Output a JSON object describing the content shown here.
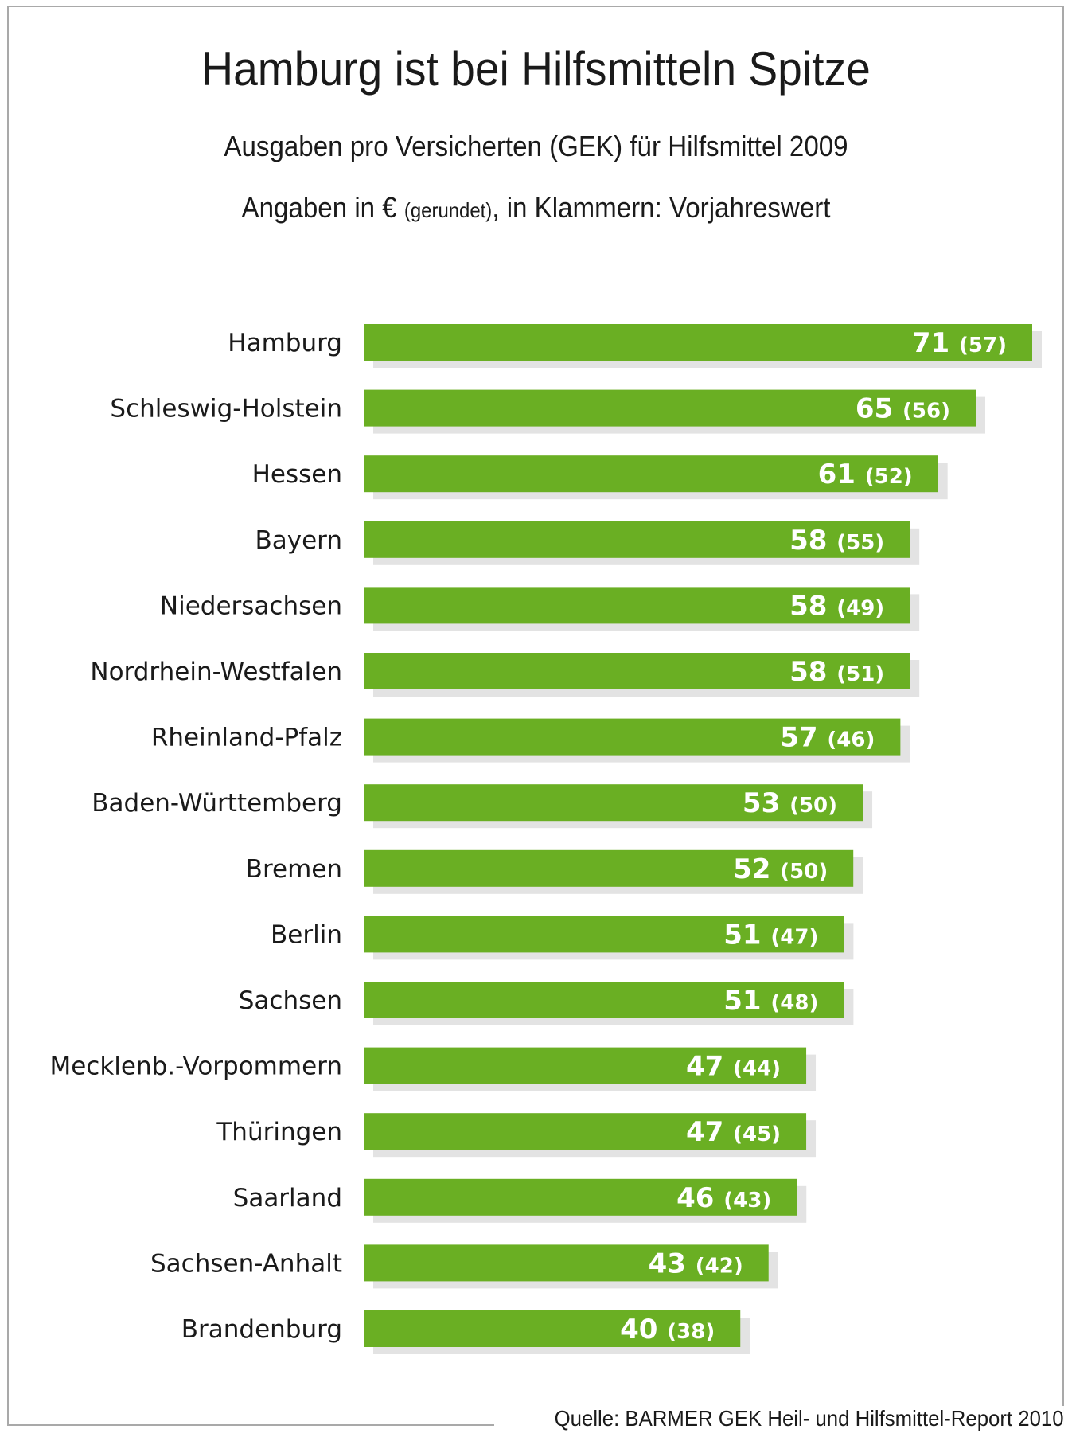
{
  "colors": {
    "bar": "#6aaf23",
    "bar_shadow": "#e3e3e3",
    "text": "#1a1a1a",
    "value_text": "#ffffff"
  },
  "chart_data": {
    "type": "bar",
    "orientation": "horizontal",
    "title": "Hamburg ist bei Hilfsmitteln Spitze",
    "subtitle": "Ausgaben pro Versicherten (GEK) für Hilfsmittel 2009",
    "note_prefix": "Angaben in € ",
    "note_small": "(gerundet)",
    "note_suffix": ", in Klammern: Vorjahreswert",
    "xlabel": "",
    "ylabel": "",
    "unit": "€",
    "grid": false,
    "axes_visible": false,
    "xlim": [
      0,
      71
    ],
    "categories": [
      "Hamburg",
      "Schleswig-Holstein",
      "Hessen",
      "Bayern",
      "Niedersachsen",
      "Nordrhein-Westfalen",
      "Rheinland-Pfalz",
      "Baden-Württemberg",
      "Bremen",
      "Berlin",
      "Sachsen",
      "Mecklenb.-Vorpommern",
      "Thüringen",
      "Saarland",
      "Sachsen-Anhalt",
      "Brandenburg"
    ],
    "series": [
      {
        "name": "2009",
        "values": [
          71,
          65,
          61,
          58,
          58,
          58,
          57,
          53,
          52,
          51,
          51,
          47,
          47,
          46,
          43,
          40
        ]
      },
      {
        "name": "Vorjahreswert (2008)",
        "values": [
          57,
          56,
          52,
          55,
          49,
          51,
          46,
          50,
          50,
          47,
          48,
          44,
          45,
          43,
          42,
          38
        ]
      }
    ],
    "source": "Quelle: BARMER GEK Heil- und Hilfsmittel-Report 2010"
  }
}
